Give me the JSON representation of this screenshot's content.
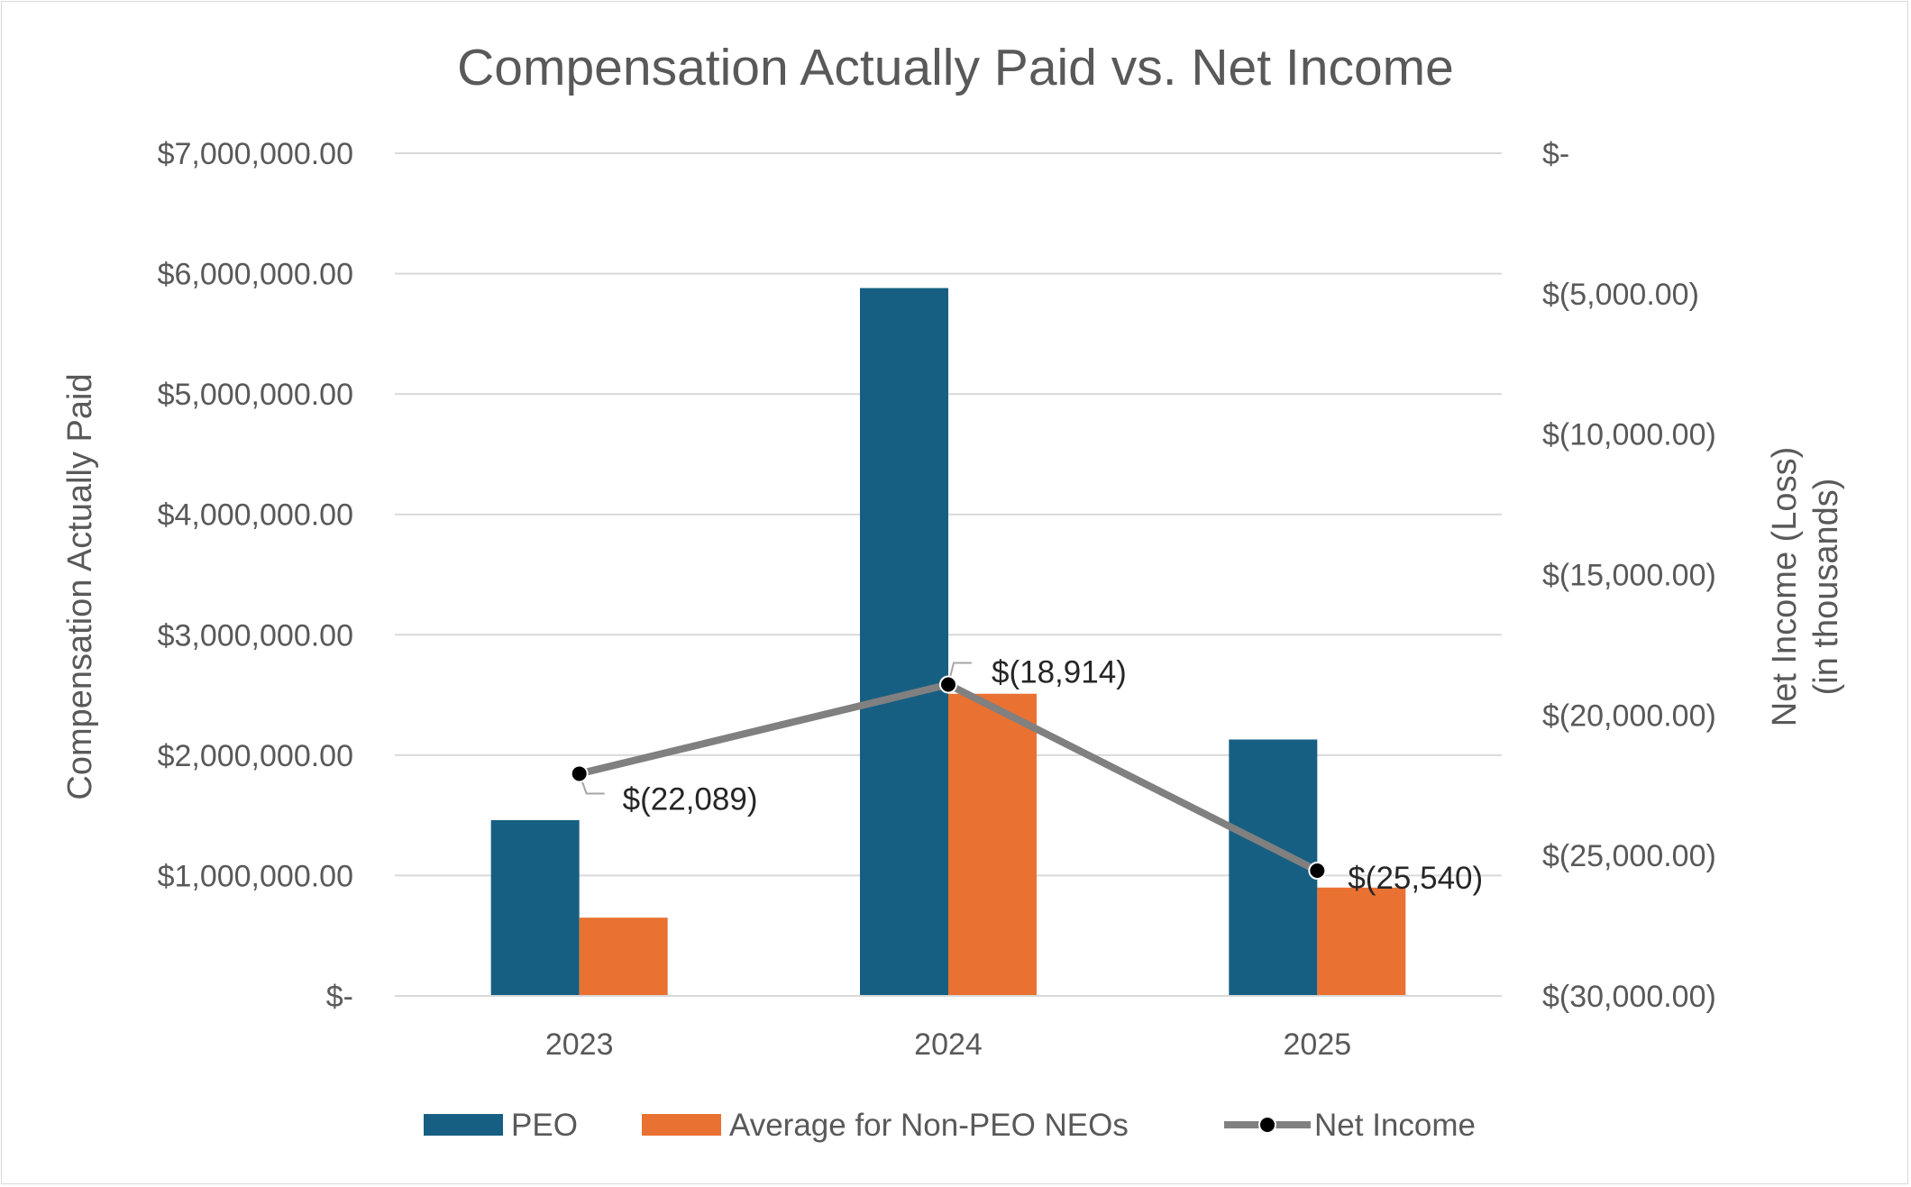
{
  "chart_data": {
    "type": "bar",
    "title": "Compensation Actually Paid vs. Net Income",
    "categories": [
      "2023",
      "2024",
      "2025"
    ],
    "series": [
      {
        "name": "PEO",
        "kind": "bar",
        "axis": "left",
        "color": "#175f82",
        "values": [
          1460000,
          5880000,
          2130000
        ]
      },
      {
        "name": "Average for Non-PEO NEOs",
        "kind": "bar",
        "axis": "left",
        "color": "#e97132",
        "values": [
          650000,
          2510000,
          900000
        ]
      },
      {
        "name": "Net Income",
        "kind": "line",
        "axis": "right",
        "color": "#808080",
        "marker_color": "#000000",
        "values": [
          -22089,
          -18914,
          -25540
        ],
        "data_labels": [
          "$(22,089)",
          "$(18,914)",
          "$(25,540)"
        ]
      }
    ],
    "y_left": {
      "label": "Compensation Actually Paid",
      "range": [
        0,
        7000000
      ],
      "ticks": [
        {
          "value": 0,
          "label": "$-"
        },
        {
          "value": 1000000,
          "label": "$1,000,000.00"
        },
        {
          "value": 2000000,
          "label": "$2,000,000.00"
        },
        {
          "value": 3000000,
          "label": "$3,000,000.00"
        },
        {
          "value": 4000000,
          "label": "$4,000,000.00"
        },
        {
          "value": 5000000,
          "label": "$5,000,000.00"
        },
        {
          "value": 6000000,
          "label": "$6,000,000.00"
        },
        {
          "value": 7000000,
          "label": "$7,000,000.00"
        }
      ]
    },
    "y_right": {
      "label_lines": [
        "Net Income (Loss)",
        "(in thousands)"
      ],
      "range": [
        -30000,
        0
      ],
      "ticks": [
        {
          "value": 0,
          "label": "$-"
        },
        {
          "value": -5000,
          "label": "$(5,000.00)"
        },
        {
          "value": -10000,
          "label": "$(10,000.00)"
        },
        {
          "value": -15000,
          "label": "$(15,000.00)"
        },
        {
          "value": -20000,
          "label": "$(20,000.00)"
        },
        {
          "value": -25000,
          "label": "$(25,000.00)"
        },
        {
          "value": -30000,
          "label": "$(30,000.00)"
        }
      ]
    },
    "grid": true,
    "legend_position": "bottom",
    "gridline_color": "#d9d9d9",
    "text_color": "#595959"
  }
}
